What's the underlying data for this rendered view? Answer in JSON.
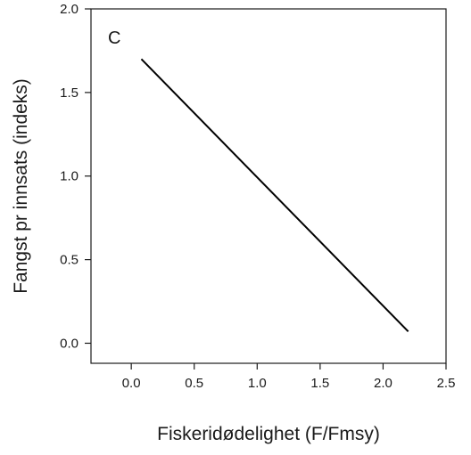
{
  "chart_data": {
    "type": "line",
    "panel_label": "C",
    "xlabel": "Fiskeridødelighet (F/Fmsy)",
    "ylabel": "Fangst pr innsats (indeks)",
    "xlim": [
      -0.32,
      2.5
    ],
    "ylim": [
      -0.12,
      2.0
    ],
    "xticks": [
      0.0,
      0.5,
      1.0,
      1.5,
      2.0,
      2.5
    ],
    "xtick_labels": [
      "0.0",
      "0.5",
      "1.0",
      "1.5",
      "2.0",
      "2.5"
    ],
    "yticks": [
      0.0,
      0.5,
      1.0,
      1.5,
      2.0
    ],
    "ytick_labels": [
      "0.0",
      "0.5",
      "1.0",
      "1.5",
      "2.0"
    ],
    "grid": false,
    "series": [
      {
        "x": [
          0.08,
          2.2
        ],
        "y": [
          1.7,
          0.07
        ],
        "color": "#000000"
      }
    ]
  }
}
